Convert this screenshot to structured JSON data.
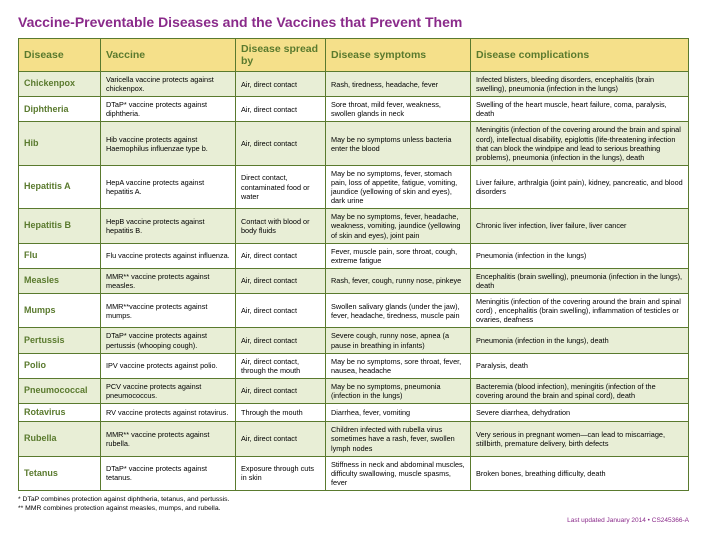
{
  "title": "Vaccine-Preventable Diseases and the Vaccines that Prevent Them",
  "title_color": "#8a2a8a",
  "header_bg": "#f5e08a",
  "header_text_color": "#5a7a2e",
  "disease_text_color": "#5a7a2e",
  "updated_color": "#8a2a8a",
  "columns": [
    "Disease",
    "Vaccine",
    "Disease spread by",
    "Disease symptoms",
    "Disease complications"
  ],
  "col_widths": [
    "82px",
    "135px",
    "90px",
    "145px",
    "auto"
  ],
  "rows": [
    {
      "disease": "Chickenpox",
      "vaccine": "Varicella vaccine protects against chickenpox.",
      "spread": "Air, direct contact",
      "symptoms": "Rash, tiredness, headache, fever",
      "complications": "Infected blisters, bleeding disorders, encephalitis (brain swelling), pneumonia (infection in the lungs)"
    },
    {
      "disease": "Diphtheria",
      "vaccine": "DTaP* vaccine protects against diphtheria.",
      "spread": "Air, direct contact",
      "symptoms": "Sore throat, mild fever, weakness, swollen glands in neck",
      "complications": "Swelling of the heart muscle, heart failure, coma, paralysis, death"
    },
    {
      "disease": "Hib",
      "vaccine": "Hib vaccine protects against Haemophilus influenzae type b.",
      "spread": "Air, direct contact",
      "symptoms": "May be no symptoms unless bacteria enter the blood",
      "complications": "Meningitis (infection of the covering around the brain and spinal cord), intellectual disability, epiglottis (life-threatening infection that can block the windpipe and lead to serious breathing problems), pneumonia (infection in the lungs), death"
    },
    {
      "disease": "Hepatitis A",
      "vaccine": "HepA vaccine protects against hepatitis A.",
      "spread": "Direct contact, contaminated food or water",
      "symptoms": "May be no symptoms, fever, stomach pain, loss of appetite, fatigue, vomiting, jaundice (yellowing of skin and eyes), dark urine",
      "complications": "Liver failure, arthralgia (joint pain), kidney, pancreatic, and blood disorders"
    },
    {
      "disease": "Hepatitis B",
      "vaccine": "HepB vaccine protects against hepatitis B.",
      "spread": "Contact with blood or body fluids",
      "symptoms": "May be no symptoms, fever, headache, weakness, vomiting, jaundice (yellowing of skin and eyes), joint pain",
      "complications": "Chronic liver infection, liver failure, liver cancer"
    },
    {
      "disease": "Flu",
      "vaccine": "Flu vaccine protects against influenza.",
      "spread": "Air, direct contact",
      "symptoms": "Fever, muscle pain, sore throat, cough, extreme fatigue",
      "complications": "Pneumonia (infection in the lungs)"
    },
    {
      "disease": "Measles",
      "vaccine": "MMR** vaccine protects against measles.",
      "spread": "Air, direct contact",
      "symptoms": "Rash, fever, cough, runny nose, pinkeye",
      "complications": "Encephalitis (brain swelling), pneumonia (infection in the lungs), death"
    },
    {
      "disease": "Mumps",
      "vaccine": "MMR**vaccine protects against mumps.",
      "spread": "Air, direct contact",
      "symptoms": "Swollen salivary glands (under the jaw), fever, headache, tiredness, muscle pain",
      "complications": "Meningitis (infection of the covering around the brain and spinal cord) , encephalitis (brain swelling), inflammation of testicles or ovaries, deafness"
    },
    {
      "disease": "Pertussis",
      "vaccine": "DTaP* vaccine protects against pertussis (whooping cough).",
      "spread": "Air, direct contact",
      "symptoms": "Severe cough, runny nose, apnea (a pause in breathing in infants)",
      "complications": "Pneumonia (infection in the lungs), death"
    },
    {
      "disease": "Polio",
      "vaccine": "IPV vaccine protects against polio.",
      "spread": "Air, direct contact, through the mouth",
      "symptoms": "May be no symptoms, sore throat, fever, nausea, headache",
      "complications": "Paralysis, death"
    },
    {
      "disease": "Pneumococcal",
      "vaccine": "PCV vaccine protects against pneumococcus.",
      "spread": "Air, direct contact",
      "symptoms": "May be no symptoms, pneumonia (infection in the lungs)",
      "complications": "Bacteremia (blood infection), meningitis (infection of the covering around the brain and spinal cord), death"
    },
    {
      "disease": "Rotavirus",
      "vaccine": "RV vaccine protects against rotavirus.",
      "spread": "Through the mouth",
      "symptoms": "Diarrhea, fever, vomiting",
      "complications": "Severe diarrhea, dehydration"
    },
    {
      "disease": "Rubella",
      "vaccine": "MMR** vaccine protects against rubella.",
      "spread": "Air, direct contact",
      "symptoms": "Children infected with rubella virus sometimes have a rash, fever, swollen lymph nodes",
      "complications": "Very serious in pregnant women—can lead to miscarriage, stillbirth, premature delivery, birth defects"
    },
    {
      "disease": "Tetanus",
      "vaccine": "DTaP* vaccine protects against tetanus.",
      "spread": "Exposure through cuts in skin",
      "symptoms": "Stiffness in neck and abdominal muscles, difficulty swallowing, muscle spasms, fever",
      "complications": "Broken bones, breathing difficulty, death"
    }
  ],
  "footnote1": "* DTaP combines protection against diphtheria, tetanus, and pertussis.",
  "footnote2": "** MMR combines protection against measles, mumps, and rubella.",
  "updated": "Last updated January 2014 • CS245366-A"
}
